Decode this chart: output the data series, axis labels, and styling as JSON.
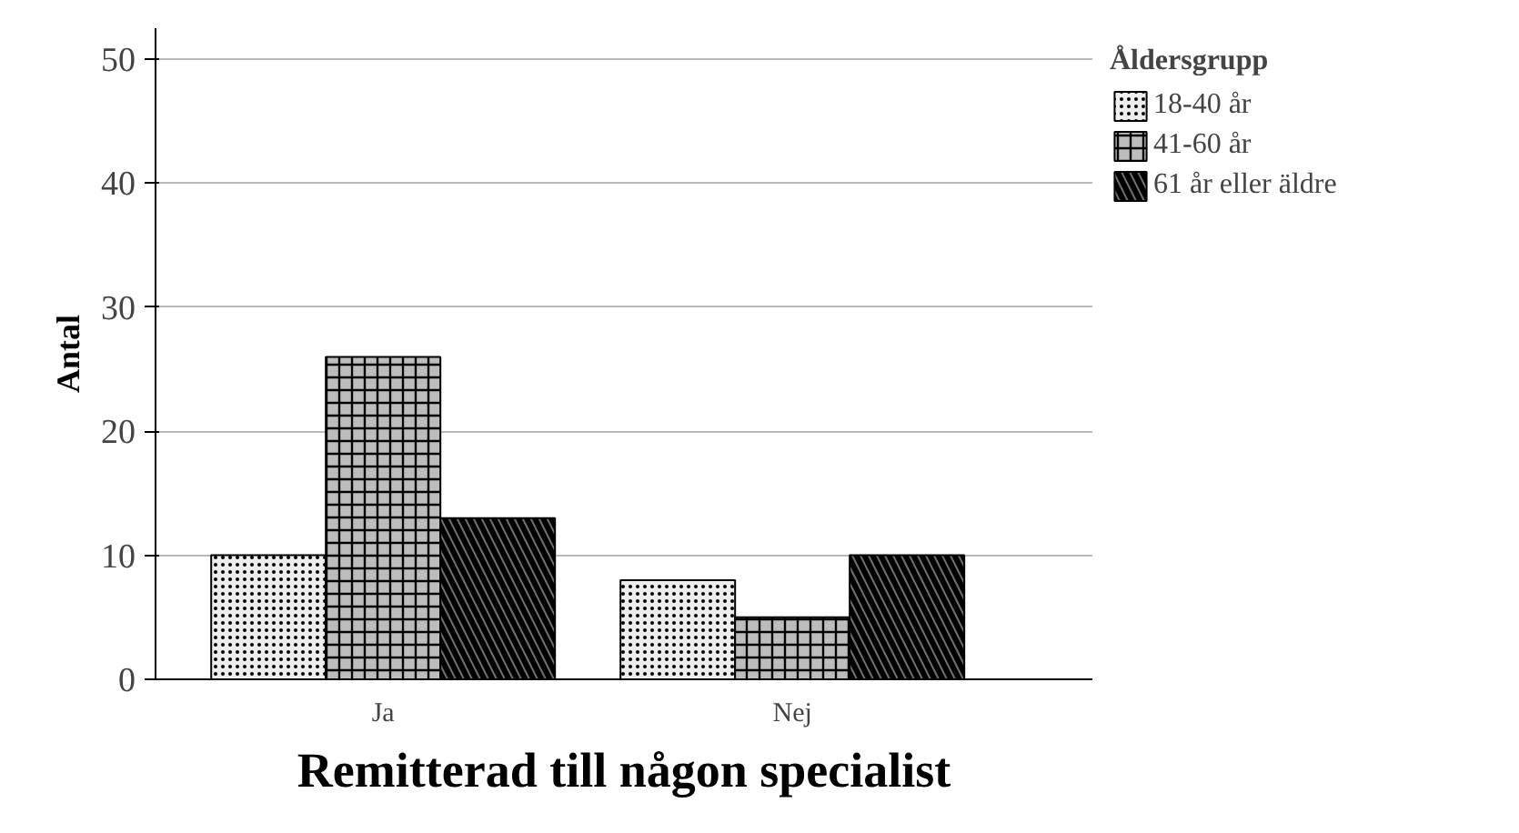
{
  "chart_data": {
    "type": "bar",
    "xlabel": "Remitterad till någon specialist",
    "ylabel": "Antal",
    "legend_title": "Åldersgrupp",
    "categories": [
      "Ja",
      "Nej"
    ],
    "series": [
      {
        "name": "18-40 år",
        "color": "#eeeeee",
        "values": [
          10,
          8
        ]
      },
      {
        "name": "41-60 år",
        "color": "#bdbdbd",
        "values": [
          26,
          5
        ]
      },
      {
        "name": "61 år eller äldre",
        "color": "#6e6e6e",
        "values": [
          13,
          10
        ]
      }
    ],
    "ylim": [
      0,
      52.5
    ],
    "yticks": [
      0,
      10,
      20,
      30,
      40,
      50
    ],
    "grid": "y",
    "legend": "top right"
  }
}
